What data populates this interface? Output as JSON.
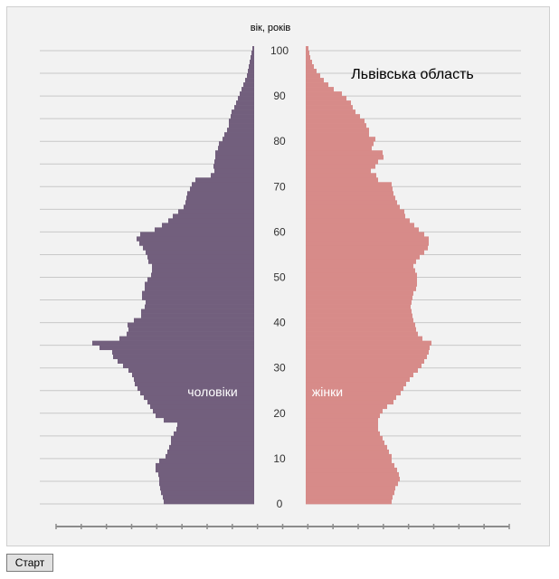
{
  "button": {
    "start_label": "Старт"
  },
  "chart_data": {
    "type": "bar",
    "orientation": "horizontal-pyramid",
    "title": "Львівська область",
    "ylabel": "вік, років",
    "y_ticks": [
      "0",
      "10",
      "20",
      "30",
      "40",
      "50",
      "60",
      "70",
      "80",
      "90",
      "100"
    ],
    "ylim": [
      0,
      100
    ],
    "grid": true,
    "colors": {
      "male": "#725f7d",
      "female": "#d78b89"
    },
    "series": [
      {
        "name": "чоловіки",
        "values": [
          100,
          101,
          103,
          104,
          105,
          105,
          106,
          109,
          109,
          105,
          98,
          96,
          94,
          92,
          92,
          89,
          86,
          85,
          100,
          109,
          112,
          115,
          118,
          122,
          126,
          129,
          132,
          133,
          135,
          139,
          145,
          151,
          156,
          157,
          171,
          179,
          149,
          141,
          139,
          140,
          133,
          125,
          125,
          121,
          120,
          124,
          124,
          121,
          121,
          118,
          114,
          113,
          113,
          117,
          118,
          120,
          123,
          127,
          130,
          126,
          110,
          102,
          95,
          90,
          84,
          78,
          76,
          75,
          74,
          71,
          69,
          65,
          48,
          44,
          45,
          44,
          43,
          43,
          40,
          39,
          35,
          33,
          30,
          28,
          28,
          26,
          25,
          22,
          20,
          18,
          16,
          14,
          12,
          10,
          8,
          7,
          6,
          5,
          4,
          3,
          2
        ]
      },
      {
        "name": "жінки",
        "values": [
          95,
          96,
          98,
          99,
          102,
          104,
          103,
          101,
          98,
          95,
          95,
          92,
          90,
          87,
          85,
          82,
          80,
          80,
          80,
          82,
          85,
          90,
          97,
          100,
          105,
          108,
          111,
          115,
          119,
          124,
          128,
          131,
          134,
          136,
          137,
          139,
          129,
          124,
          122,
          121,
          119,
          118,
          117,
          116,
          117,
          118,
          119,
          122,
          123,
          123,
          123,
          121,
          119,
          122,
          126,
          131,
          135,
          136,
          136,
          131,
          125,
          120,
          115,
          110,
          109,
          104,
          101,
          99,
          97,
          96,
          95,
          80,
          78,
          72,
          77,
          80,
          86,
          85,
          73,
          75,
          77,
          70,
          70,
          67,
          65,
          60,
          55,
          52,
          50,
          45,
          40,
          31,
          25,
          20,
          16,
          12,
          9,
          7,
          5,
          4,
          3
        ]
      }
    ],
    "xlim": [
      0,
      240
    ]
  }
}
